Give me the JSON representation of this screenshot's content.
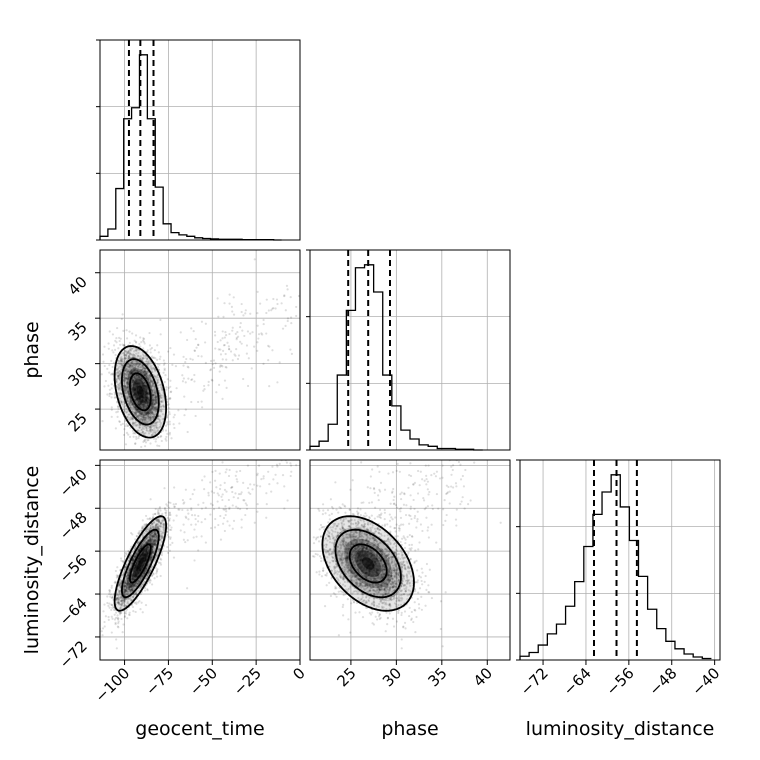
{
  "chart_data": {
    "type": "corner",
    "parameters": [
      "geocent_time",
      "phase",
      "luminosity_distance"
    ],
    "xlabels": [
      "geocent_time",
      "phase",
      "luminosity_distance"
    ],
    "ylabels": [
      "phase",
      "luminosity_distance"
    ],
    "grid": true,
    "ranges": {
      "geocent_time": [
        -114,
        0
      ],
      "phase": [
        20.5,
        42.5
      ],
      "luminosity_distance": [
        -76.3,
        -39
      ]
    },
    "ticks": {
      "geocent_time": [
        -100,
        -75,
        -50,
        -25,
        0
      ],
      "phase": [
        25,
        30,
        35,
        40
      ],
      "luminosity_distance": [
        -72,
        -64,
        -56,
        -48,
        -40
      ]
    },
    "tick_labels": {
      "geocent_time": [
        "−100",
        "−75",
        "−50",
        "−25",
        "0"
      ],
      "phase": [
        "25",
        "30",
        "35",
        "40"
      ],
      "luminosity_distance": [
        "−72",
        "−64",
        "−56",
        "−48",
        "−40"
      ]
    },
    "quantiles": {
      "geocent_time": [
        -97.5,
        -91,
        -83.5
      ],
      "phase": [
        24.7,
        26.9,
        29.3
      ],
      "luminosity_distance": [
        -62.5,
        -58.3,
        -54.5
      ]
    },
    "histograms": {
      "geocent_time": {
        "edges": [
          -114,
          -109.5,
          -105,
          -100.5,
          -96,
          -91.5,
          -87,
          -82.5,
          -78,
          -73.5,
          -69,
          -64.5,
          -60,
          -55.5,
          -51,
          -46.5,
          -42,
          -37.5,
          -33,
          -28.5,
          -24,
          -19.5,
          -15,
          -10.5
        ],
        "counts": [
          0.05,
          0.15,
          0.7,
          1.65,
          1.8,
          2.52,
          1.65,
          0.72,
          0.22,
          0.1,
          0.07,
          0.05,
          0.03,
          0.02,
          0.015,
          0.01,
          0.01,
          0.01,
          0.005,
          0.005,
          0.005,
          0.005,
          0
        ]
      },
      "phase": {
        "edges": [
          20.5,
          21.5,
          22.5,
          23.5,
          24.5,
          25.5,
          26.5,
          27.5,
          28.5,
          29.5,
          30.5,
          31.5,
          32.5,
          33.5,
          34.5,
          35.5,
          36.5,
          37.5,
          38.5,
          39.5
        ],
        "counts": [
          0.05,
          0.12,
          0.35,
          1.02,
          1.9,
          2.48,
          2.52,
          2.15,
          1.02,
          0.6,
          0.27,
          0.15,
          0.07,
          0.05,
          0.02,
          0.02,
          0.01,
          0.01,
          0
        ]
      },
      "luminosity_distance": {
        "edges": [
          -76.3,
          -74.6,
          -72.9,
          -71.2,
          -69.5,
          -67.8,
          -66.1,
          -64.4,
          -62.7,
          -61,
          -59.3,
          -57.6,
          -55.9,
          -54.2,
          -52.5,
          -50.8,
          -49.1,
          -47.4,
          -45.7,
          -44,
          -42.3,
          -40.6
        ],
        "counts": [
          0.05,
          0.1,
          0.2,
          0.35,
          0.48,
          0.72,
          1.05,
          1.52,
          1.95,
          2.25,
          2.48,
          2.05,
          1.6,
          1.12,
          0.68,
          0.42,
          0.25,
          0.15,
          0.08,
          0.04,
          0.02
        ]
      }
    },
    "distribution": {
      "means": [
        -91,
        26.9,
        -58.3
      ],
      "stds": [
        7,
        2.4,
        4.2
      ],
      "correlations": {
        "0_1": -0.35,
        "0_2": 0.8,
        "1_2": -0.4
      }
    }
  }
}
